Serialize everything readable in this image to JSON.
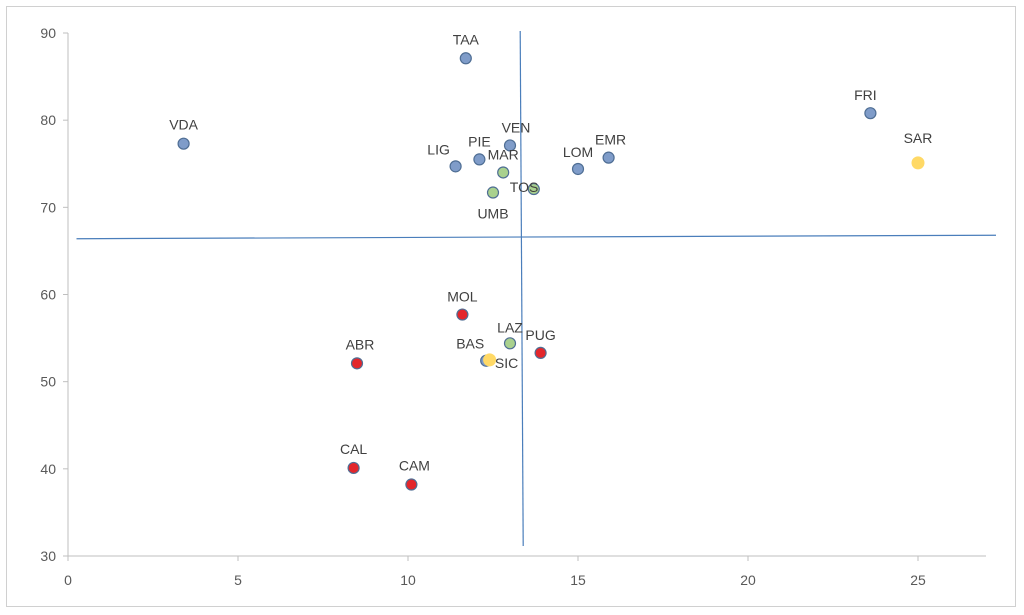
{
  "chart_data": {
    "type": "scatter",
    "title": "",
    "xlabel": "",
    "ylabel": "",
    "xlim": [
      0,
      27
    ],
    "ylim": [
      30,
      90
    ],
    "xticks": [
      "0",
      "5",
      "10",
      "15",
      "20",
      "25"
    ],
    "yticks": [
      "30",
      "40",
      "50",
      "60",
      "70",
      "80",
      "90"
    ],
    "grid": false,
    "legend": "none",
    "colors": {
      "blue": "#7f9cc9",
      "green": "#a9d18e",
      "red": "#e3262b",
      "yellow": "#ffd966",
      "axis": "#bfbfbf",
      "reference_line": "#4a7ebb"
    },
    "reference_lines": {
      "vertical_x": 13.3,
      "horizontal_y": [
        66.4,
        66.8
      ]
    },
    "points": [
      {
        "label": "TAA",
        "x": 11.7,
        "y": 87.1,
        "color": "blue"
      },
      {
        "label": "FRI",
        "x": 23.6,
        "y": 80.8,
        "color": "blue"
      },
      {
        "label": "VDA",
        "x": 3.4,
        "y": 77.3,
        "color": "blue"
      },
      {
        "label": "VEN",
        "x": 13.0,
        "y": 77.1,
        "color": "blue"
      },
      {
        "label": "PIE",
        "x": 12.1,
        "y": 75.5,
        "color": "blue"
      },
      {
        "label": "EMR",
        "x": 15.9,
        "y": 75.7,
        "color": "blue"
      },
      {
        "label": "SAR",
        "x": 25.0,
        "y": 75.1,
        "color": "yellow"
      },
      {
        "label": "LIG",
        "x": 11.4,
        "y": 74.7,
        "color": "blue"
      },
      {
        "label": "LOM",
        "x": 15.0,
        "y": 74.4,
        "color": "blue"
      },
      {
        "label": "MAR",
        "x": 12.8,
        "y": 74.0,
        "color": "green"
      },
      {
        "label": "TOS",
        "x": 13.7,
        "y": 72.1,
        "color": "green"
      },
      {
        "label": "UMB",
        "x": 12.5,
        "y": 71.7,
        "color": "green"
      },
      {
        "label": "MOL",
        "x": 11.6,
        "y": 57.7,
        "color": "red"
      },
      {
        "label": "LAZ",
        "x": 13.0,
        "y": 54.4,
        "color": "green"
      },
      {
        "label": "PUG",
        "x": 13.9,
        "y": 53.3,
        "color": "red"
      },
      {
        "label": "BAS",
        "x": 12.3,
        "y": 52.4,
        "color": "blue"
      },
      {
        "label": "SIC",
        "x": 12.4,
        "y": 52.5,
        "color": "yellow"
      },
      {
        "label": "ABR",
        "x": 8.5,
        "y": 52.1,
        "color": "red"
      },
      {
        "label": "CAL",
        "x": 8.4,
        "y": 40.1,
        "color": "red"
      },
      {
        "label": "CAM",
        "x": 10.1,
        "y": 38.2,
        "color": "red"
      }
    ]
  }
}
